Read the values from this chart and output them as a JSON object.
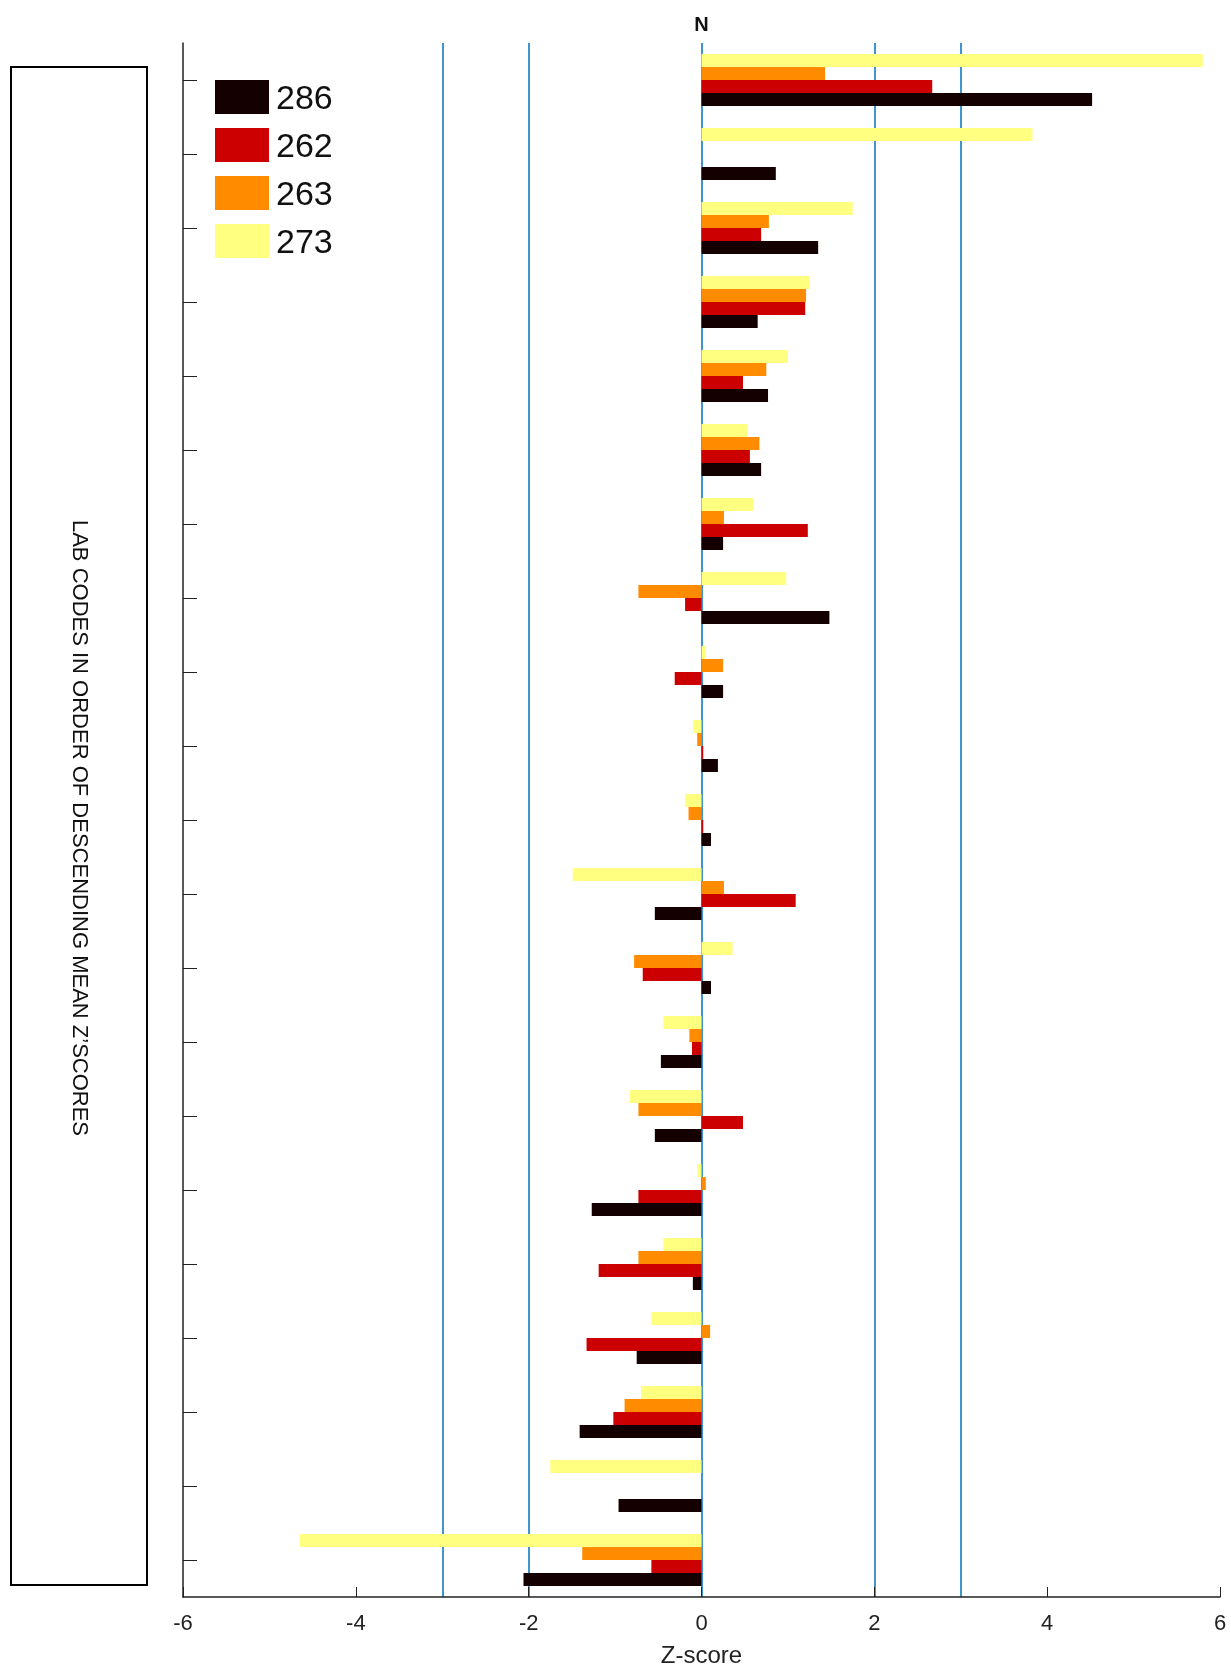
{
  "chart_data": {
    "type": "bar",
    "orientation": "horizontal",
    "xlabel": "Z-score",
    "ylabel": "LAB CODES IN ORDER OF DESCENDING MEAN Z’SCORES",
    "categories": [
      null,
      null,
      null,
      null,
      null,
      null,
      null,
      null,
      null,
      null,
      null,
      null,
      null,
      null,
      null,
      null,
      null,
      null,
      null,
      null,
      null
    ],
    "series": [
      {
        "name": "286",
        "color": "#140000",
        "values": [
          4.52,
          0.86,
          1.35,
          0.65,
          0.77,
          0.69,
          0.25,
          1.48,
          0.25,
          0.19,
          0.11,
          -0.54,
          0.11,
          -0.47,
          -0.54,
          -1.27,
          -0.1,
          -0.75,
          -1.41,
          -0.96,
          -2.06
        ]
      },
      {
        "name": "262",
        "color": "#cc0000",
        "values": [
          2.67,
          null,
          0.69,
          1.2,
          0.48,
          0.56,
          1.23,
          -0.19,
          -0.31,
          0.02,
          0.02,
          1.09,
          -0.68,
          -0.11,
          0.48,
          -0.73,
          -1.19,
          -1.33,
          -1.02,
          null,
          -0.58
        ]
      },
      {
        "name": "263",
        "color": "#ff8c00",
        "values": [
          1.43,
          null,
          0.78,
          1.21,
          0.75,
          0.67,
          0.26,
          -0.73,
          0.25,
          -0.05,
          -0.15,
          0.26,
          -0.78,
          -0.14,
          -0.73,
          0.05,
          -0.73,
          0.1,
          -0.89,
          null,
          -1.38
        ]
      },
      {
        "name": "273",
        "color": "#ffff80",
        "values": [
          5.8,
          3.83,
          1.75,
          1.25,
          1.0,
          0.53,
          0.6,
          0.98,
          0.05,
          -0.1,
          -0.19,
          -1.49,
          0.36,
          -0.44,
          -0.83,
          -0.05,
          -0.44,
          -0.58,
          -0.7,
          -1.75,
          -4.65
        ]
      }
    ],
    "xlim": [
      -6,
      6
    ],
    "xticks": [
      -6,
      -4,
      -2,
      0,
      2,
      4,
      6
    ],
    "ref_lines": [
      {
        "axis": "x",
        "value": -3,
        "color": "#0072bd"
      },
      {
        "axis": "x",
        "value": -2,
        "color": "#0072bd"
      },
      {
        "axis": "x",
        "value": 0,
        "color": "#0072bd"
      },
      {
        "axis": "x",
        "value": 2,
        "color": "#0072bd"
      },
      {
        "axis": "x",
        "value": 3,
        "color": "#0072bd"
      }
    ],
    "annotations": [
      "N"
    ],
    "legend": "top left",
    "grid": false,
    "tick_labels": "x"
  }
}
